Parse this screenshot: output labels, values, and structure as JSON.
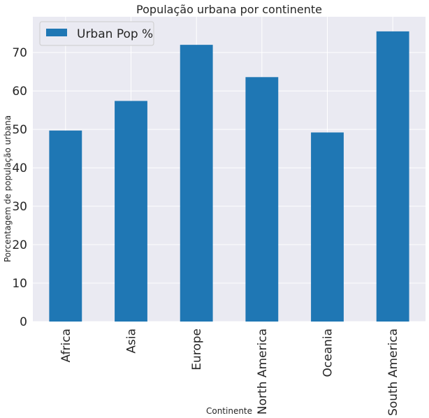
{
  "chart_data": {
    "type": "bar",
    "title": "População urbana por continente",
    "xlabel": "Continente",
    "ylabel": "Porcentagem de população urbana",
    "categories": [
      "Africa",
      "Asia",
      "Europe",
      "North America",
      "Oceania",
      "South America"
    ],
    "series": [
      {
        "name": "Urban Pop %",
        "values": [
          49.7,
          57.4,
          72.0,
          63.6,
          49.2,
          75.5
        ],
        "color": "#1f77b4"
      }
    ],
    "ylim": [
      0,
      79.3
    ],
    "yticks": [
      0,
      10,
      20,
      30,
      40,
      50,
      60,
      70
    ],
    "grid": true,
    "legend_position": "top-left",
    "background_color": "#eaeaf2",
    "grid_color": "#ffffff"
  }
}
